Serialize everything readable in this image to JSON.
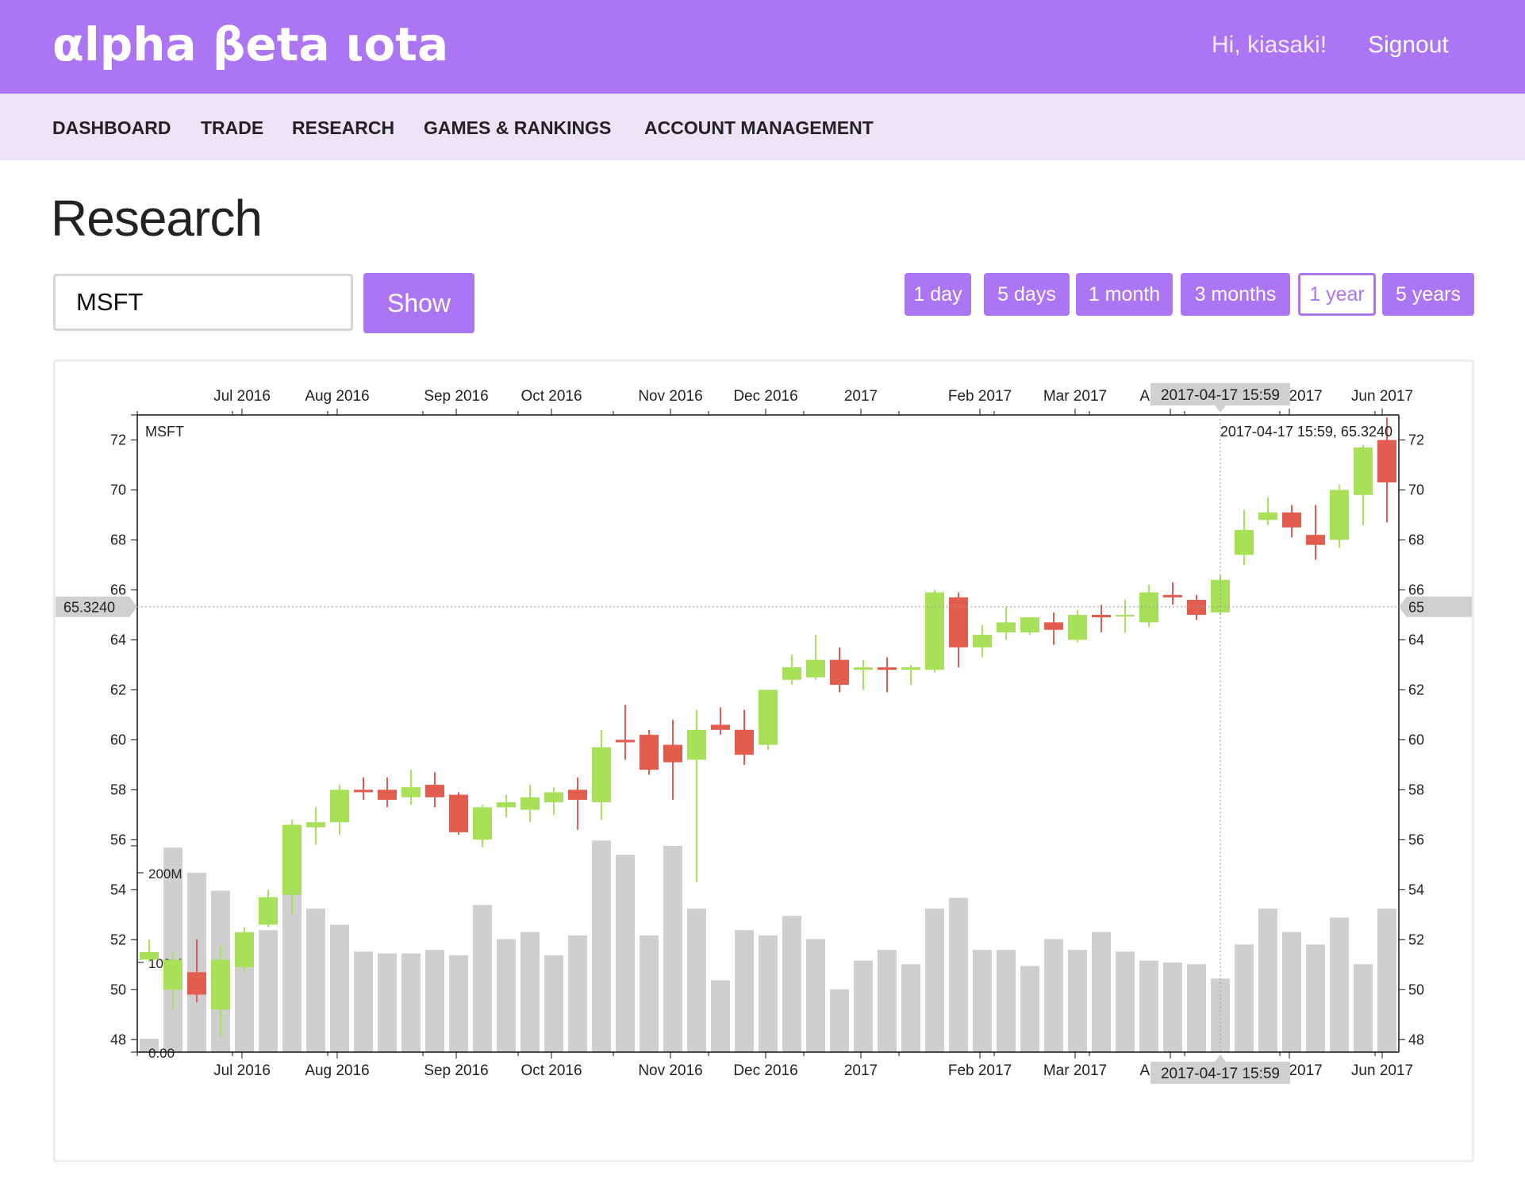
{
  "app": {
    "brand": "αlpha βeta ιota",
    "greeting": "Hi, kiasaki!",
    "signout_label": "Signout"
  },
  "nav": {
    "items": [
      {
        "label": "DASHBOARD"
      },
      {
        "label": "TRADE"
      },
      {
        "label": "RESEARCH"
      },
      {
        "label": "GAMES & RANKINGS"
      },
      {
        "label": "ACCOUNT MANAGEMENT"
      }
    ]
  },
  "page": {
    "title": "Research"
  },
  "search": {
    "value": "MSFT",
    "show_label": "Show"
  },
  "ranges": {
    "items": [
      {
        "label": "1 day"
      },
      {
        "label": "5 days"
      },
      {
        "label": "1 month"
      },
      {
        "label": "3 months"
      },
      {
        "label": "1 year",
        "active": true
      },
      {
        "label": "5 years"
      }
    ]
  },
  "colors": {
    "accent": "#ab75f4",
    "up": "#a8e05a",
    "down": "#e35d4e",
    "volume": "#cfcfcf"
  },
  "chart_data": {
    "type": "candlestick",
    "symbol_label": "MSFT",
    "crosshair": {
      "price_label": "65.3240",
      "price_value": 65.324,
      "price_right_label": "65",
      "date_label": "2017-04-17 15:59",
      "readout": "2017-04-17 15:59, 65.3240",
      "week": 45
    },
    "x_ticks": [
      "Jul 2016",
      "Aug 2016",
      "Sep 2016",
      "Oct 2016",
      "Nov 2016",
      "Dec 2016",
      "2017",
      "Feb 2017",
      "Mar 2017",
      "Apr 2017",
      "May 2017",
      "Jun 2017"
    ],
    "x_tick_weeks": [
      4.4,
      8.4,
      13.4,
      17.4,
      22.4,
      26.4,
      30.4,
      35.4,
      39.4,
      43.4,
      48.4,
      52.3
    ],
    "y_ticks": [
      48,
      50,
      52,
      54,
      56,
      58,
      60,
      62,
      64,
      66,
      68,
      70,
      72
    ],
    "ylim": [
      47.5,
      73
    ],
    "volume_ticks": [
      {
        "label": "0.00",
        "value": 0
      },
      {
        "label": "100M",
        "value": 100
      },
      {
        "label": "200M",
        "value": 200
      }
    ],
    "volume_unit": "M",
    "weeks": 53,
    "candles": [
      {
        "open": 51.2,
        "high": 52.0,
        "low": 51.1,
        "close": 51.5
      },
      {
        "open": 50.0,
        "high": 51.5,
        "low": 49.2,
        "close": 51.2
      },
      {
        "open": 50.7,
        "high": 52.0,
        "low": 49.5,
        "close": 49.8
      },
      {
        "open": 49.2,
        "high": 51.8,
        "low": 48.1,
        "close": 51.2
      },
      {
        "open": 50.9,
        "high": 52.5,
        "low": 50.7,
        "close": 52.3
      },
      {
        "open": 52.6,
        "high": 54.0,
        "low": 52.5,
        "close": 53.7
      },
      {
        "open": 53.8,
        "high": 56.8,
        "low": 53.0,
        "close": 56.6
      },
      {
        "open": 56.5,
        "high": 57.3,
        "low": 55.8,
        "close": 56.7
      },
      {
        "open": 56.7,
        "high": 58.2,
        "low": 56.2,
        "close": 58.0
      },
      {
        "open": 58.0,
        "high": 58.5,
        "low": 57.6,
        "close": 57.9
      },
      {
        "open": 58.0,
        "high": 58.5,
        "low": 57.3,
        "close": 57.6
      },
      {
        "open": 57.7,
        "high": 58.8,
        "low": 57.4,
        "close": 58.1
      },
      {
        "open": 58.2,
        "high": 58.7,
        "low": 57.3,
        "close": 57.7
      },
      {
        "open": 57.8,
        "high": 57.9,
        "low": 56.2,
        "close": 56.3
      },
      {
        "open": 56.0,
        "high": 57.4,
        "low": 55.7,
        "close": 57.3
      },
      {
        "open": 57.3,
        "high": 57.8,
        "low": 56.9,
        "close": 57.5
      },
      {
        "open": 57.2,
        "high": 58.2,
        "low": 56.7,
        "close": 57.7
      },
      {
        "open": 57.5,
        "high": 58.1,
        "low": 57.0,
        "close": 57.9
      },
      {
        "open": 58.0,
        "high": 58.5,
        "low": 56.4,
        "close": 57.6
      },
      {
        "open": 57.5,
        "high": 60.4,
        "low": 56.8,
        "close": 59.7
      },
      {
        "open": 60.0,
        "high": 61.4,
        "low": 59.2,
        "close": 59.9
      },
      {
        "open": 60.2,
        "high": 60.4,
        "low": 58.6,
        "close": 58.8
      },
      {
        "open": 59.8,
        "high": 60.8,
        "low": 57.6,
        "close": 59.1
      },
      {
        "open": 59.2,
        "high": 61.2,
        "low": 54.3,
        "close": 60.4
      },
      {
        "open": 60.6,
        "high": 61.3,
        "low": 60.2,
        "close": 60.4
      },
      {
        "open": 60.4,
        "high": 61.2,
        "low": 59.0,
        "close": 59.4
      },
      {
        "open": 59.8,
        "high": 62.0,
        "low": 59.6,
        "close": 62.0
      },
      {
        "open": 62.4,
        "high": 63.4,
        "low": 62.2,
        "close": 62.9
      },
      {
        "open": 62.5,
        "high": 64.2,
        "low": 62.4,
        "close": 63.2
      },
      {
        "open": 63.2,
        "high": 63.7,
        "low": 61.9,
        "close": 62.2
      },
      {
        "open": 62.8,
        "high": 63.2,
        "low": 62.0,
        "close": 62.9
      },
      {
        "open": 62.9,
        "high": 63.3,
        "low": 61.9,
        "close": 62.8
      },
      {
        "open": 62.8,
        "high": 63.0,
        "low": 62.2,
        "close": 62.9
      },
      {
        "open": 62.8,
        "high": 66.0,
        "low": 62.7,
        "close": 65.9
      },
      {
        "open": 65.7,
        "high": 65.9,
        "low": 62.9,
        "close": 63.7
      },
      {
        "open": 63.7,
        "high": 64.6,
        "low": 63.3,
        "close": 64.2
      },
      {
        "open": 64.3,
        "high": 65.3,
        "low": 64.0,
        "close": 64.7
      },
      {
        "open": 64.3,
        "high": 64.9,
        "low": 64.2,
        "close": 64.9
      },
      {
        "open": 64.7,
        "high": 65.1,
        "low": 63.8,
        "close": 64.4
      },
      {
        "open": 64.0,
        "high": 65.2,
        "low": 63.9,
        "close": 65.0
      },
      {
        "open": 65.0,
        "high": 65.4,
        "low": 64.3,
        "close": 64.9
      },
      {
        "open": 65.0,
        "high": 65.6,
        "low": 64.3,
        "close": 65.0
      },
      {
        "open": 64.7,
        "high": 66.2,
        "low": 64.5,
        "close": 65.9
      },
      {
        "open": 65.8,
        "high": 66.3,
        "low": 65.4,
        "close": 65.7
      },
      {
        "open": 65.6,
        "high": 65.8,
        "low": 64.8,
        "close": 65.0
      },
      {
        "open": 65.1,
        "high": 66.6,
        "low": 65.0,
        "close": 66.4
      },
      {
        "open": 67.4,
        "high": 69.2,
        "low": 67.0,
        "close": 68.4
      },
      {
        "open": 68.8,
        "high": 69.7,
        "low": 68.6,
        "close": 69.1
      },
      {
        "open": 69.1,
        "high": 69.4,
        "low": 68.1,
        "close": 68.5
      },
      {
        "open": 68.2,
        "high": 69.4,
        "low": 67.2,
        "close": 67.8
      },
      {
        "open": 68.0,
        "high": 70.2,
        "low": 67.7,
        "close": 70.0
      },
      {
        "open": 69.8,
        "high": 71.8,
        "low": 68.6,
        "close": 71.7
      },
      {
        "open": 72.0,
        "high": 72.9,
        "low": 68.7,
        "close": 70.3
      }
    ],
    "volume": [
      15,
      228,
      200,
      180,
      110,
      136,
      220,
      160,
      142,
      112,
      110,
      110,
      114,
      108,
      164,
      126,
      134,
      108,
      130,
      236,
      220,
      130,
      230,
      160,
      80,
      136,
      130,
      152,
      126,
      70,
      102,
      114,
      98,
      160,
      172,
      114,
      114,
      96,
      126,
      114,
      134,
      112,
      102,
      100,
      98,
      82,
      120,
      160,
      134,
      120,
      150,
      98,
      160
    ]
  }
}
